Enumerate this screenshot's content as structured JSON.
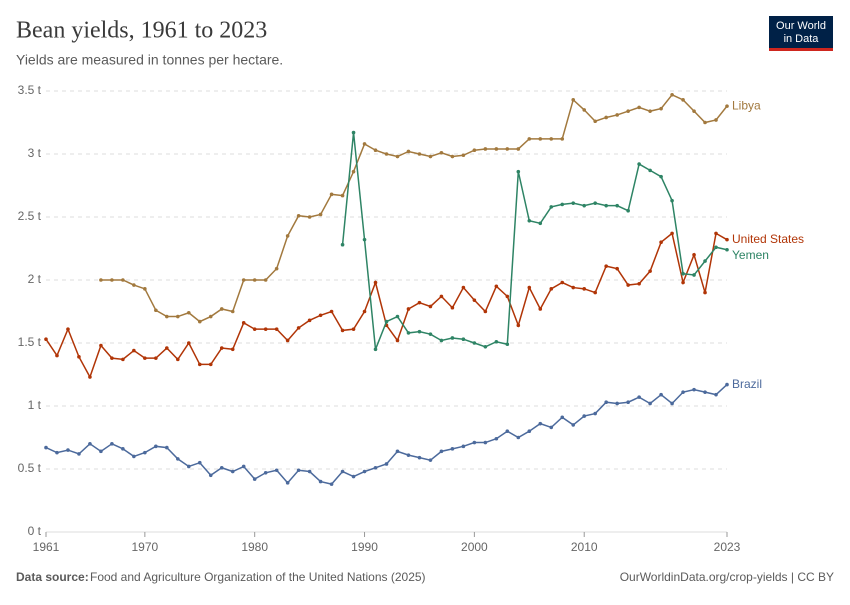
{
  "header": {
    "title": "Bean yields, 1961 to 2023",
    "subtitle": "Yields are measured in tonnes per hectare.",
    "logo": [
      "Our World",
      "in Data"
    ]
  },
  "footer": {
    "source_label": "Data source:",
    "source": "Food and Agriculture Organization of the United Nations (2025)",
    "right": "OurWorldinData.org/crop-yields | CC BY"
  },
  "chart_data": {
    "type": "line",
    "grid": true,
    "x": [
      1961,
      1962,
      1963,
      1964,
      1965,
      1966,
      1967,
      1968,
      1969,
      1970,
      1971,
      1972,
      1973,
      1974,
      1975,
      1976,
      1977,
      1978,
      1979,
      1980,
      1981,
      1982,
      1983,
      1984,
      1985,
      1986,
      1987,
      1988,
      1989,
      1990,
      1991,
      1992,
      1993,
      1994,
      1995,
      1996,
      1997,
      1998,
      1999,
      2000,
      2001,
      2002,
      2003,
      2004,
      2005,
      2006,
      2007,
      2008,
      2009,
      2010,
      2011,
      2012,
      2013,
      2014,
      2015,
      2016,
      2017,
      2018,
      2019,
      2020,
      2021,
      2022,
      2023
    ],
    "xlim": [
      1961,
      2023
    ],
    "xticks": [
      1961,
      1970,
      1980,
      1990,
      2000,
      2010,
      2023
    ],
    "ylim": [
      0,
      3.5
    ],
    "yticks": [
      {
        "value": 0,
        "label": "0 t"
      },
      {
        "value": 0.5,
        "label": "0.5 t"
      },
      {
        "value": 1,
        "label": "1 t"
      },
      {
        "value": 1.5,
        "label": "1.5 t"
      },
      {
        "value": 2,
        "label": "2 t"
      },
      {
        "value": 2.5,
        "label": "2.5 t"
      },
      {
        "value": 3,
        "label": "3 t"
      },
      {
        "value": 3.5,
        "label": "3.5 t"
      }
    ],
    "series": [
      {
        "name": "Libya",
        "color": "#a2793e",
        "values": [
          null,
          null,
          null,
          null,
          null,
          2.0,
          2.0,
          2.0,
          1.96,
          1.93,
          1.76,
          1.71,
          1.71,
          1.74,
          1.67,
          1.71,
          1.77,
          1.75,
          2.0,
          2.0,
          2.0,
          2.09,
          2.35,
          2.51,
          2.5,
          2.52,
          2.68,
          2.67,
          2.86,
          3.08,
          3.03,
          3.0,
          2.98,
          3.02,
          3.0,
          2.98,
          3.01,
          2.98,
          2.99,
          3.03,
          3.04,
          3.04,
          3.04,
          3.04,
          3.12,
          3.12,
          3.12,
          3.12,
          3.43,
          3.35,
          3.26,
          3.29,
          3.31,
          3.34,
          3.37,
          3.34,
          3.36,
          3.47,
          3.43,
          3.34,
          3.25,
          3.27,
          3.38
        ]
      },
      {
        "name": "United States",
        "color": "#b13507",
        "values": [
          1.53,
          1.4,
          1.61,
          1.39,
          1.23,
          1.48,
          1.38,
          1.37,
          1.44,
          1.38,
          1.38,
          1.46,
          1.37,
          1.5,
          1.33,
          1.33,
          1.46,
          1.45,
          1.66,
          1.61,
          1.61,
          1.61,
          1.52,
          1.62,
          1.68,
          1.72,
          1.75,
          1.6,
          1.61,
          1.75,
          1.98,
          1.64,
          1.52,
          1.77,
          1.82,
          1.79,
          1.87,
          1.78,
          1.94,
          1.84,
          1.75,
          1.95,
          1.87,
          1.64,
          1.94,
          1.77,
          1.93,
          1.98,
          1.94,
          1.93,
          1.9,
          2.11,
          2.09,
          1.96,
          1.97,
          2.07,
          2.3,
          2.37,
          1.98,
          2.2,
          1.9,
          2.37,
          2.32
        ]
      },
      {
        "name": "Yemen",
        "color": "#2e8465",
        "values": [
          null,
          null,
          null,
          null,
          null,
          null,
          null,
          null,
          null,
          null,
          null,
          null,
          null,
          null,
          null,
          null,
          null,
          null,
          null,
          null,
          null,
          null,
          null,
          null,
          null,
          null,
          null,
          2.28,
          3.17,
          2.32,
          1.45,
          1.67,
          1.71,
          1.58,
          1.59,
          1.57,
          1.52,
          1.54,
          1.53,
          1.5,
          1.47,
          1.51,
          1.49,
          2.86,
          2.47,
          2.45,
          2.58,
          2.6,
          2.61,
          2.59,
          2.61,
          2.59,
          2.59,
          2.55,
          2.92,
          2.87,
          2.82,
          2.63,
          2.05,
          2.04,
          2.15,
          2.26,
          2.24
        ]
      },
      {
        "name": "Brazil",
        "color": "#4c6a9c",
        "values": [
          0.67,
          0.63,
          0.65,
          0.62,
          0.7,
          0.64,
          0.7,
          0.66,
          0.6,
          0.63,
          0.68,
          0.67,
          0.58,
          0.52,
          0.55,
          0.45,
          0.51,
          0.48,
          0.52,
          0.42,
          0.47,
          0.49,
          0.39,
          0.49,
          0.48,
          0.4,
          0.38,
          0.48,
          0.44,
          0.48,
          0.51,
          0.54,
          0.64,
          0.61,
          0.59,
          0.57,
          0.64,
          0.66,
          0.68,
          0.71,
          0.71,
          0.74,
          0.8,
          0.75,
          0.8,
          0.86,
          0.83,
          0.91,
          0.85,
          0.92,
          0.94,
          1.03,
          1.02,
          1.03,
          1.07,
          1.02,
          1.09,
          1.02,
          1.11,
          1.13,
          1.11,
          1.09,
          1.17
        ]
      }
    ]
  }
}
